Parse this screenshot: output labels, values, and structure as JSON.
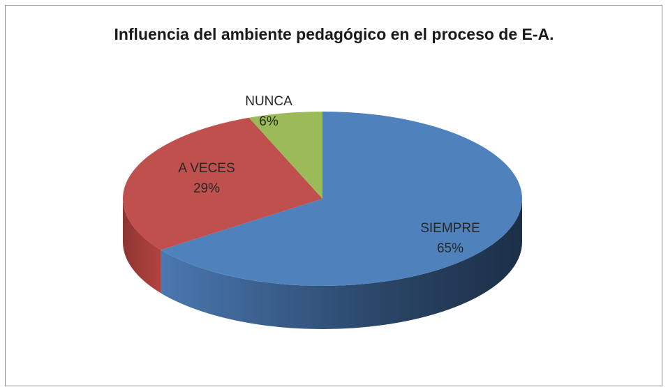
{
  "chart_data": {
    "type": "pie",
    "title": "Influencia del ambiente pedagógico en el proceso de E-A.",
    "categories": [
      "SIEMPRE",
      "A VECES",
      "NUNCA"
    ],
    "values": [
      65,
      29,
      6
    ],
    "value_labels": [
      "65%",
      "29%",
      "6%"
    ],
    "colors": [
      "#4f81bd",
      "#c0504d",
      "#9bbb59"
    ]
  }
}
